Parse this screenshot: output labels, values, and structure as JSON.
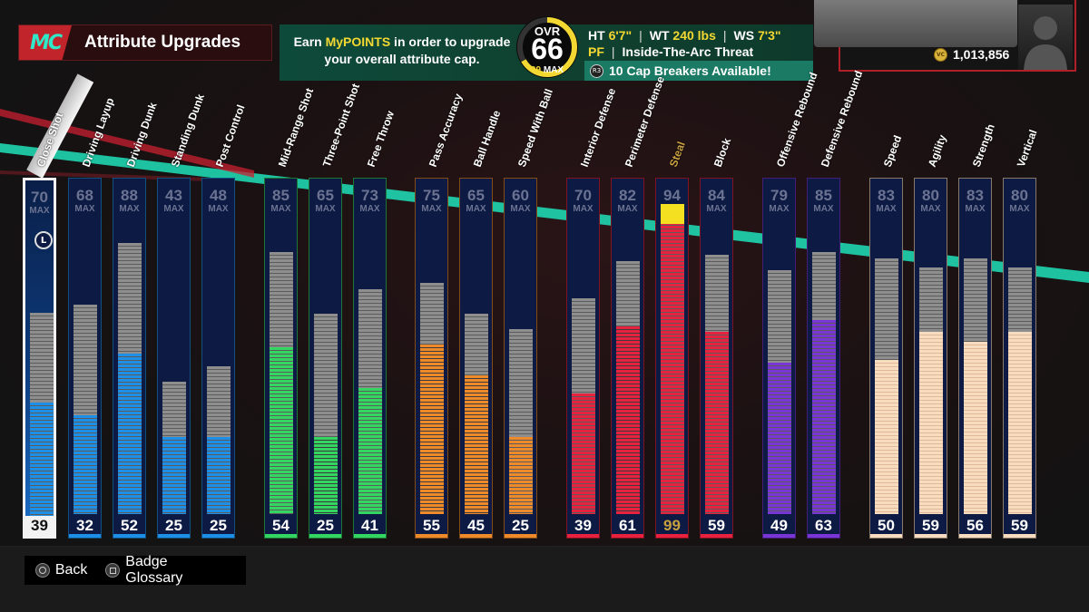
{
  "header": {
    "logo_text": "MC",
    "title": "Attribute Upgrades"
  },
  "info": {
    "line1_pre": "Earn ",
    "line1_highlight": "MyPOINTS",
    "line1_post": " in order to upgrade",
    "line2": "your overall attribute cap."
  },
  "overall": {
    "label": "OVR",
    "value": "66",
    "max_value": "99",
    "max_label": "MAX"
  },
  "player": {
    "ht_label": "HT",
    "ht": "6'7\"",
    "wt_label": "WT",
    "wt": "240 lbs",
    "ws_label": "WS",
    "ws": "7'3\"",
    "position": "PF",
    "archetype": "Inside-The-Arc Threat",
    "cap_breakers": "10 Cap Breakers Available!",
    "cap_breaker_button": "R3"
  },
  "currency": {
    "coin_label": "VC",
    "value": "1,013,856"
  },
  "attributes": [
    {
      "label": "Close Shot",
      "max": 70,
      "current": 39,
      "group": "inside",
      "selected": true
    },
    {
      "label": "Driving Layup",
      "max": 68,
      "current": 32,
      "group": "inside"
    },
    {
      "label": "Driving Dunk",
      "max": 88,
      "current": 52,
      "group": "inside"
    },
    {
      "label": "Standing Dunk",
      "max": 43,
      "current": 25,
      "group": "inside"
    },
    {
      "label": "Post Control",
      "max": 48,
      "current": 25,
      "group": "inside"
    },
    {
      "label": "Mid-Range Shot",
      "max": 85,
      "current": 54,
      "group": "shooting"
    },
    {
      "label": "Three-Point Shot",
      "max": 65,
      "current": 25,
      "group": "shooting"
    },
    {
      "label": "Free Throw",
      "max": 73,
      "current": 41,
      "group": "shooting"
    },
    {
      "label": "Pass Accuracy",
      "max": 75,
      "current": 55,
      "group": "playmaking"
    },
    {
      "label": "Ball Handle",
      "max": 65,
      "current": 45,
      "group": "playmaking"
    },
    {
      "label": "Speed With Ball",
      "max": 60,
      "current": 25,
      "group": "playmaking"
    },
    {
      "label": "Interior Defense",
      "max": 70,
      "current": 39,
      "group": "defense"
    },
    {
      "label": "Perimeter Defense",
      "max": 82,
      "current": 61,
      "group": "defense"
    },
    {
      "label": "Steal",
      "max": 94,
      "current": 99,
      "group": "defense",
      "capped": true
    },
    {
      "label": "Block",
      "max": 84,
      "current": 59,
      "group": "defense"
    },
    {
      "label": "Offensive Rebound",
      "max": 79,
      "current": 49,
      "group": "rebounding"
    },
    {
      "label": "Defensive Rebound",
      "max": 85,
      "current": 63,
      "group": "rebounding"
    },
    {
      "label": "Speed",
      "max": 83,
      "current": 50,
      "group": "physical"
    },
    {
      "label": "Agility",
      "max": 80,
      "current": 59,
      "group": "physical"
    },
    {
      "label": "Strength",
      "max": 83,
      "current": 56,
      "group": "physical"
    },
    {
      "label": "Vertical",
      "max": 80,
      "current": 59,
      "group": "physical"
    }
  ],
  "max_word": "MAX",
  "lock_label": "L",
  "colors": {
    "inside": "#1e8fe6",
    "shooting": "#33d660",
    "playmaking": "#ef8a2a",
    "defense": "#e8223e",
    "rebounding": "#7a35d6",
    "physical": "#f7dcc0",
    "accent_yellow": "#f4d832",
    "teal": "#2ee8c8"
  },
  "footer": {
    "back_label": "Back",
    "glossary_label": "Badge Glossary"
  }
}
